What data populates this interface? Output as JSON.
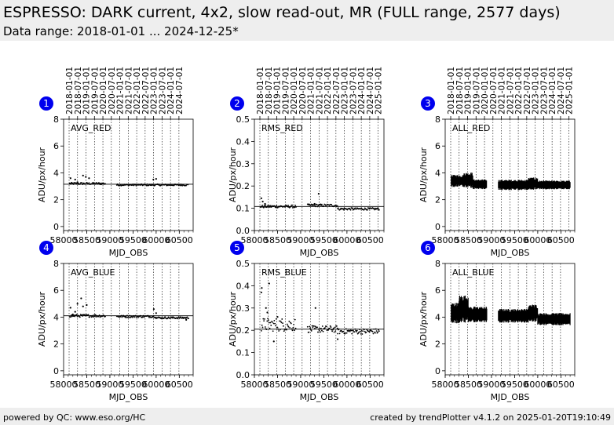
{
  "header": {
    "title": "ESPRESSO: DARK current, 4x2, slow read-out, MR (FULL range, 2577 days)",
    "subtitle": "Data range: 2018-01-01 ... 2024-12-25*"
  },
  "footer": {
    "left": "powered by QC: www.eso.org/HC",
    "right": "created by trendPlotter v4.1.2 on 2025-01-20T19:10:49"
  },
  "colors": {
    "badge": "#0000ee",
    "data": "#000000",
    "background": "#ffffff"
  },
  "chart_data": [
    {
      "id": "1",
      "type": "scatter",
      "label": "AVG_RED",
      "xlabel": "MJD_OBS",
      "ylabel": "ADU/px/hour",
      "xlim": [
        58000,
        60800
      ],
      "ylim": [
        -0.3,
        8
      ],
      "yticks": [
        0,
        2,
        4,
        6,
        8
      ],
      "xticks": [
        58000,
        58500,
        59000,
        59500,
        60000,
        60500
      ],
      "xtick_labels": [
        "58000",
        "58500",
        "59000",
        "59500",
        "60000",
        "60500"
      ],
      "date_ticks": [
        "2018-01-01",
        "2018-07-01",
        "2019-01-01",
        "2019-07-01",
        "2020-01-01",
        "2020-07-01",
        "2021-01-01",
        "2021-07-01",
        "2022-01-01",
        "2022-07-01",
        "2023-01-01",
        "2023-07-01",
        "2024-01-01",
        "2024-07-01"
      ],
      "reference_line": 3.15,
      "style": "points",
      "segments": [
        {
          "x0": 58130,
          "x1": 58900,
          "y": 3.2,
          "spread": 0.08
        },
        {
          "x0": 59150,
          "x1": 60700,
          "y": 3.1,
          "spread": 0.06
        }
      ],
      "outliers": [
        [
          58150,
          3.6
        ],
        [
          58250,
          3.5
        ],
        [
          58300,
          3.3
        ],
        [
          58420,
          3.8
        ],
        [
          58480,
          3.7
        ],
        [
          58550,
          3.6
        ],
        [
          59940,
          3.5
        ],
        [
          60000,
          3.55
        ]
      ]
    },
    {
      "id": "2",
      "type": "scatter",
      "label": "RMS_RED",
      "xlabel": "MJD_OBS",
      "ylabel": "ADU/px/hour",
      "xlim": [
        58000,
        60800
      ],
      "ylim": [
        0,
        0.5
      ],
      "yticks": [
        0.0,
        0.1,
        0.2,
        0.3,
        0.4,
        0.5
      ],
      "xticks": [
        58000,
        58500,
        59000,
        59500,
        60000,
        60500
      ],
      "xtick_labels": [
        "58000",
        "58500",
        "59000",
        "59500",
        "60000",
        "60500"
      ],
      "date_ticks": [
        "2018-01-01",
        "2018-07-01",
        "2019-01-01",
        "2019-07-01",
        "2020-01-01",
        "2020-07-01",
        "2021-01-01",
        "2021-07-01",
        "2022-01-01",
        "2022-07-01",
        "2023-01-01",
        "2023-07-01",
        "2024-01-01",
        "2024-07-01",
        "2025-01-01"
      ],
      "reference_line": 0.108,
      "style": "points",
      "segments": [
        {
          "x0": 58130,
          "x1": 58900,
          "y": 0.108,
          "spread": 0.006
        },
        {
          "x0": 59150,
          "x1": 59800,
          "y": 0.113,
          "spread": 0.006
        },
        {
          "x0": 59800,
          "x1": 60700,
          "y": 0.097,
          "spread": 0.005
        }
      ],
      "outliers": [
        [
          58150,
          0.145
        ],
        [
          58180,
          0.13
        ],
        [
          58230,
          0.12
        ],
        [
          59390,
          0.165
        ],
        [
          59300,
          0.12
        ]
      ]
    },
    {
      "id": "3",
      "type": "scatter",
      "label": "ALL_RED",
      "xlabel": "MJD_OBS",
      "ylabel": "ADU/px/hour",
      "xlim": [
        58000,
        60800
      ],
      "ylim": [
        -0.3,
        8
      ],
      "yticks": [
        0,
        2,
        4,
        6,
        8
      ],
      "xticks": [
        58000,
        58500,
        59000,
        59500,
        60000,
        60500
      ],
      "xtick_labels": [
        "58000",
        "58500",
        "59000",
        "59500",
        "60000",
        "60500"
      ],
      "date_ticks": [
        "2018-01-01",
        "2018-07-01",
        "2019-01-01",
        "2019-07-01",
        "2020-01-01",
        "2020-07-01",
        "2021-01-01",
        "2021-07-01",
        "2022-01-01",
        "2022-07-01",
        "2023-01-01",
        "2023-07-01",
        "2024-01-01",
        "2024-07-01",
        "2025-01-01"
      ],
      "reference_line": null,
      "style": "bars",
      "segments": [
        {
          "x0": 58130,
          "x1": 58400,
          "y": 3.4,
          "spread": 0.35
        },
        {
          "x0": 58400,
          "x1": 58600,
          "y": 3.45,
          "spread": 0.45
        },
        {
          "x0": 58600,
          "x1": 58900,
          "y": 3.15,
          "spread": 0.28
        },
        {
          "x0": 59150,
          "x1": 59800,
          "y": 3.1,
          "spread": 0.3
        },
        {
          "x0": 59800,
          "x1": 60000,
          "y": 3.2,
          "spread": 0.35
        },
        {
          "x0": 60000,
          "x1": 60700,
          "y": 3.1,
          "spread": 0.25
        }
      ],
      "outliers": []
    },
    {
      "id": "4",
      "type": "scatter",
      "label": "AVG_BLUE",
      "xlabel": "MJD_OBS",
      "ylabel": "ADU/px/hour",
      "xlim": [
        58000,
        60800
      ],
      "ylim": [
        -0.3,
        8
      ],
      "yticks": [
        0,
        2,
        4,
        6,
        8
      ],
      "xticks": [
        58000,
        58500,
        59000,
        59500,
        60000,
        60500
      ],
      "xtick_labels": [
        "58000",
        "58500",
        "59000",
        "59500",
        "60000",
        "60500"
      ],
      "date_ticks": [],
      "reference_line": 4.1,
      "style": "points",
      "segments": [
        {
          "x0": 58130,
          "x1": 58900,
          "y": 4.1,
          "spread": 0.1
        },
        {
          "x0": 59150,
          "x1": 60000,
          "y": 4.05,
          "spread": 0.08
        },
        {
          "x0": 60000,
          "x1": 60700,
          "y": 3.95,
          "spread": 0.07
        }
      ],
      "outliers": [
        [
          58150,
          4.7
        ],
        [
          58250,
          4.4
        ],
        [
          58300,
          5.0
        ],
        [
          58380,
          5.4
        ],
        [
          58420,
          4.8
        ],
        [
          58500,
          4.9
        ],
        [
          58200,
          4.2
        ],
        [
          59950,
          4.6
        ],
        [
          60000,
          4.3
        ],
        [
          60650,
          3.8
        ]
      ]
    },
    {
      "id": "5",
      "type": "scatter",
      "label": "RMS_BLUE",
      "xlabel": "MJD_OBS",
      "ylabel": "ADU/px/hour",
      "xlim": [
        58000,
        60800
      ],
      "ylim": [
        0,
        0.5
      ],
      "yticks": [
        0.0,
        0.1,
        0.2,
        0.3,
        0.4,
        0.5
      ],
      "xticks": [
        58000,
        58500,
        59000,
        59500,
        60000,
        60500
      ],
      "xtick_labels": [
        "58000",
        "58500",
        "59000",
        "59500",
        "60000",
        "60500"
      ],
      "date_ticks": [],
      "reference_line": 0.205,
      "style": "points",
      "segments": [
        {
          "x0": 58150,
          "x1": 58900,
          "y": 0.225,
          "spread": 0.03
        },
        {
          "x0": 59150,
          "x1": 59800,
          "y": 0.205,
          "spread": 0.015
        },
        {
          "x0": 59800,
          "x1": 60700,
          "y": 0.195,
          "spread": 0.012
        }
      ],
      "outliers": [
        [
          58150,
          0.37
        ],
        [
          58160,
          0.39
        ],
        [
          58250,
          0.3
        ],
        [
          58280,
          0.28
        ],
        [
          58320,
          0.41
        ],
        [
          58420,
          0.15
        ],
        [
          58500,
          0.26
        ],
        [
          59320,
          0.3
        ],
        [
          59800,
          0.16
        ]
      ]
    },
    {
      "id": "6",
      "type": "scatter",
      "label": "ALL_BLUE",
      "xlabel": "MJD_OBS",
      "ylabel": "ADU/px/hour",
      "xlim": [
        58000,
        60800
      ],
      "ylim": [
        -0.3,
        8
      ],
      "yticks": [
        0,
        2,
        4,
        6,
        8
      ],
      "xticks": [
        58000,
        58500,
        59000,
        59500,
        60000,
        60500
      ],
      "xtick_labels": [
        "58000",
        "58500",
        "59000",
        "59500",
        "60000",
        "60500"
      ],
      "date_ticks": [],
      "reference_line": null,
      "style": "bars",
      "segments": [
        {
          "x0": 58130,
          "x1": 58300,
          "y": 4.3,
          "spread": 0.6
        },
        {
          "x0": 58300,
          "x1": 58500,
          "y": 4.6,
          "spread": 0.8
        },
        {
          "x0": 58500,
          "x1": 58900,
          "y": 4.2,
          "spread": 0.45
        },
        {
          "x0": 59150,
          "x1": 59800,
          "y": 4.1,
          "spread": 0.4
        },
        {
          "x0": 59800,
          "x1": 60000,
          "y": 4.3,
          "spread": 0.5
        },
        {
          "x0": 60000,
          "x1": 60700,
          "y": 3.85,
          "spread": 0.35
        }
      ],
      "outliers": []
    }
  ]
}
